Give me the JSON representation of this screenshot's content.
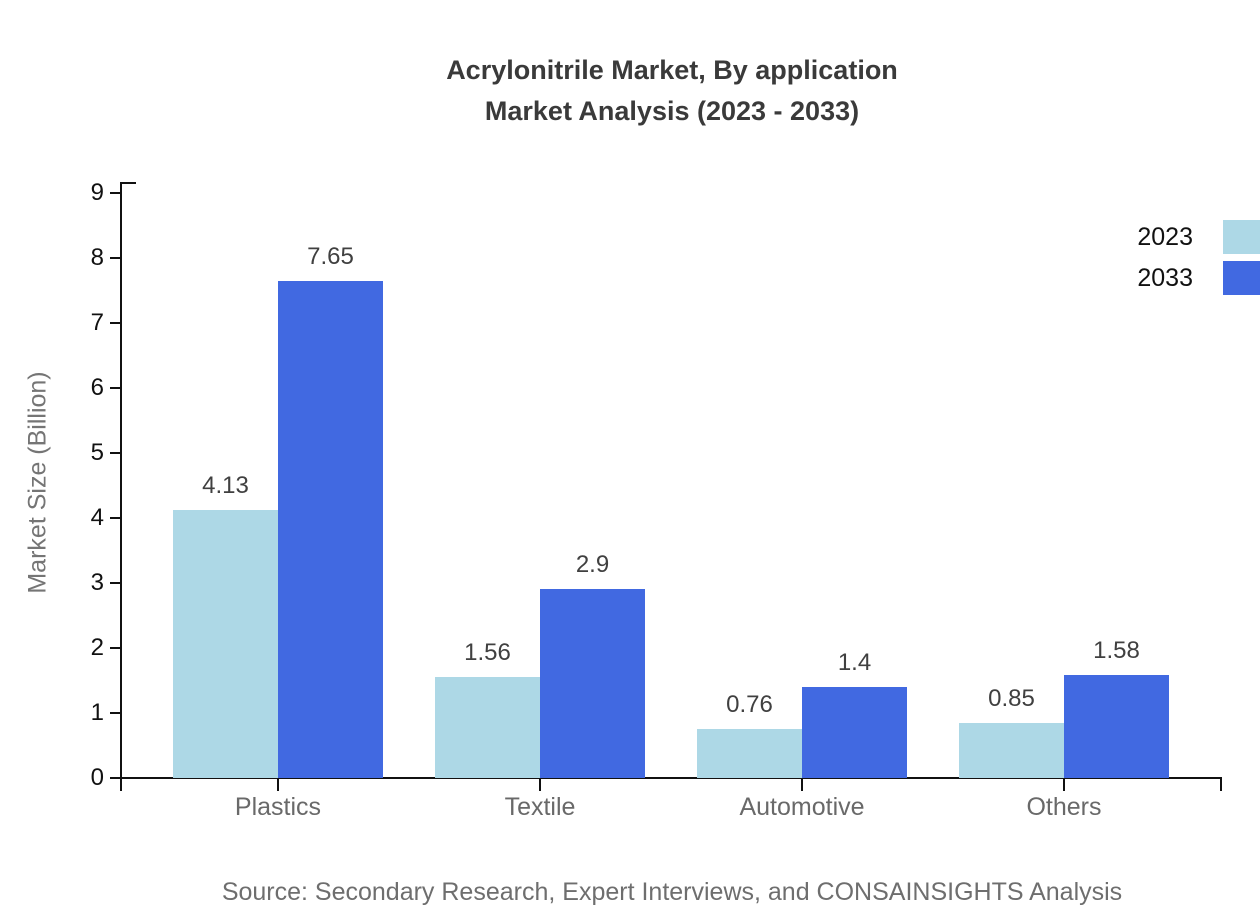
{
  "chart_data": {
    "type": "bar",
    "title": "Acrylonitrile Market, By application Market Analysis (2023 - 2033)",
    "title_lines": [
      "Acrylonitrile Market, By application",
      "Market Analysis (2023 - 2033)"
    ],
    "categories": [
      "Plastics",
      "Textile",
      "Automotive",
      "Others"
    ],
    "series": [
      {
        "name": "2023",
        "color": "#ADD8E6",
        "values": [
          4.13,
          1.56,
          0.76,
          0.85
        ]
      },
      {
        "name": "2033",
        "color": "#4169E1",
        "values": [
          7.65,
          2.9,
          1.4,
          1.58
        ]
      }
    ],
    "xlabel": "",
    "ylabel": "Market Size (Billion)",
    "ylim": [
      0,
      9
    ],
    "ytick_step": 1,
    "grid": false,
    "legend_position": "top-right",
    "bar_value_labels": true
  },
  "footer": {
    "source": "Source: Secondary Research, Expert Interviews, and CONSAINSIGHTS Analysis"
  },
  "colors": {
    "background": "#ffffff",
    "axis": "#111111",
    "title_text": "#3a3a3a",
    "tick_label": "#111111",
    "category_label": "#696969",
    "axis_title": "#757575",
    "value_label": "#404040",
    "source_text": "#6e6e6e"
  }
}
